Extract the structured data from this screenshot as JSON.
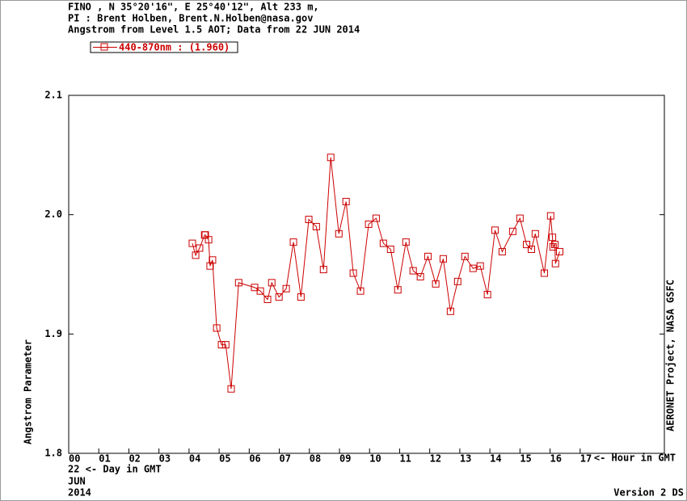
{
  "chart_data": {
    "type": "line",
    "header": [
      "FINO , N 35°20'16\", E 25°40'12\", Alt 233 m,",
      "PI : Brent Holben, Brent.N.Holben@nasa.gov",
      "Angstrom from Level 1.5 AOT; Data from 22 JUN 2014"
    ],
    "y_label": "Angstrom Parameter",
    "x_label": "<- Hour in GMT",
    "date_lines": [
      "22  <- Day in GMT",
      "JUN",
      "2014"
    ],
    "side_note": "AERONET Project, NASA GSFC",
    "version": "Version 2 DS",
    "xlim": [
      0,
      19.8
    ],
    "ylim": [
      1.8,
      2.1
    ],
    "xticks": [
      {
        "value": 0,
        "label": "00"
      },
      {
        "value": 1,
        "label": "01"
      },
      {
        "value": 2,
        "label": "02"
      },
      {
        "value": 3,
        "label": "03"
      },
      {
        "value": 4,
        "label": "04"
      },
      {
        "value": 5,
        "label": "05"
      },
      {
        "value": 6,
        "label": "06"
      },
      {
        "value": 7,
        "label": "07"
      },
      {
        "value": 8,
        "label": "08"
      },
      {
        "value": 9,
        "label": "09"
      },
      10,
      11,
      12,
      13,
      14,
      15,
      16,
      17
    ],
    "yticks": [
      1.8,
      1.9,
      {
        "value": 2,
        "label": "2.0"
      },
      2.1
    ],
    "series": [
      {
        "name": "440-870nm  : (1.960)",
        "color": "#cc0000",
        "x": [
          4.11,
          4.22,
          4.35,
          4.52,
          4.54,
          4.65,
          4.7,
          4.78,
          4.92,
          5.08,
          5.22,
          5.4,
          5.65,
          6.18,
          6.37,
          6.61,
          6.75,
          6.99,
          7.23,
          7.47,
          7.72,
          7.98,
          8.23,
          8.47,
          8.71,
          8.98,
          9.22,
          9.46,
          9.7,
          9.97,
          10.22,
          10.46,
          10.7,
          10.94,
          11.21,
          11.45,
          11.69,
          11.94,
          12.2,
          12.45,
          12.69,
          12.93,
          13.17,
          13.44,
          13.68,
          13.92,
          14.17,
          14.41,
          14.76,
          15.0,
          15.22,
          15.38,
          15.51,
          15.81,
          16.02,
          16.08,
          16.1,
          16.16,
          16.18,
          16.32
        ],
        "values": [
          1.976,
          1.966,
          1.972,
          1.983,
          1.983,
          1.979,
          1.957,
          1.962,
          1.905,
          1.891,
          1.891,
          1.854,
          1.943,
          1.939,
          1.936,
          1.929,
          1.943,
          1.931,
          1.938,
          1.977,
          1.931,
          1.996,
          1.99,
          1.954,
          2.048,
          1.984,
          2.011,
          1.951,
          1.936,
          1.992,
          1.997,
          1.976,
          1.971,
          1.937,
          1.977,
          1.953,
          1.948,
          1.965,
          1.942,
          1.963,
          1.919,
          1.944,
          1.965,
          1.955,
          1.957,
          1.933,
          1.987,
          1.969,
          1.986,
          1.997,
          1.975,
          1.971,
          1.984,
          1.951,
          1.999,
          1.981,
          1.973,
          1.975,
          1.959,
          1.969
        ]
      }
    ]
  }
}
